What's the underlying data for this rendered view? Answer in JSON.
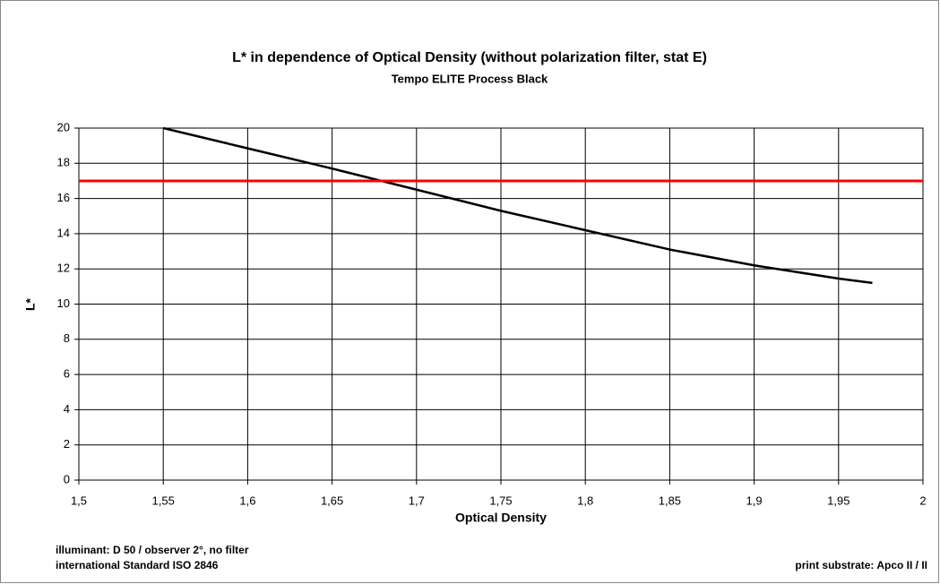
{
  "chart_data": {
    "type": "line",
    "title": "L* in dependence of Optical Density (without polarization filter, stat E)",
    "subtitle": "Tempo ELITE Process Black",
    "x_label": "Optical Density",
    "y_label": "L*",
    "annotations": [
      "illuminant: D 50 / observer 2°, no filter",
      "international Standard ISO 2846",
      "print substrate: Apco II / II"
    ],
    "series": [
      {
        "color": "#000000",
        "x": [
          1.55,
          1.6,
          1.65,
          1.7,
          1.75,
          1.8,
          1.85,
          1.9,
          1.95,
          1.97
        ],
        "values": [
          20,
          18.85,
          17.7,
          16.5,
          15.3,
          14.2,
          13.1,
          12.2,
          11.45,
          11.2
        ]
      },
      {
        "color": "#ff0000",
        "x": [
          1.5,
          2
        ],
        "values": [
          17,
          17
        ]
      }
    ],
    "xlim": [
      1.5,
      2
    ],
    "xticks": [
      {
        "value": 1.5,
        "label": "1,5"
      },
      {
        "value": 1.55,
        "label": "1,55"
      },
      {
        "value": 1.6,
        "label": "1,6"
      },
      {
        "value": 1.65,
        "label": "1,65"
      },
      {
        "value": 1.7,
        "label": "1,7"
      },
      {
        "value": 1.75,
        "label": "1,75"
      },
      {
        "value": 1.8,
        "label": "1,8"
      },
      {
        "value": 1.85,
        "label": "1,85"
      },
      {
        "value": 1.9,
        "label": "1,9"
      },
      {
        "value": 1.95,
        "label": "1,95"
      },
      {
        "value": 2,
        "label": "2"
      }
    ],
    "ylim": [
      0,
      20
    ],
    "yticks": [
      0,
      2,
      4,
      6,
      8,
      10,
      12,
      14,
      16,
      18,
      20
    ],
    "grid": true
  }
}
